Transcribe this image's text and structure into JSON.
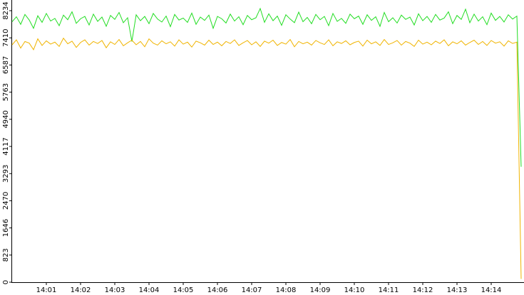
{
  "chart_data": {
    "type": "line",
    "categories": [
      null,
      null,
      null,
      null,
      null,
      null,
      null,
      null,
      "14:01",
      null,
      null,
      null,
      null,
      null,
      null,
      null,
      "14:02",
      null,
      null,
      null,
      null,
      null,
      null,
      null,
      "14:03",
      null,
      null,
      null,
      null,
      null,
      null,
      null,
      "14:04",
      null,
      null,
      null,
      null,
      null,
      null,
      null,
      "14:05",
      null,
      null,
      null,
      null,
      null,
      null,
      null,
      "14:06",
      null,
      null,
      null,
      null,
      null,
      null,
      null,
      "14:07",
      null,
      null,
      null,
      null,
      null,
      null,
      null,
      "14:08",
      null,
      null,
      null,
      null,
      null,
      null,
      null,
      "14:09",
      null,
      null,
      null,
      null,
      null,
      null,
      null,
      "14:10",
      null,
      null,
      null,
      null,
      null,
      null,
      null,
      "14:11",
      null,
      null,
      null,
      null,
      null,
      null,
      null,
      "14:12",
      null,
      null,
      null,
      null,
      null,
      null,
      null,
      "14:13",
      null,
      null,
      null,
      null,
      null,
      null,
      null,
      "14:14",
      null,
      null,
      null,
      null,
      null,
      null,
      null
    ],
    "series": [
      {
        "color": "#22dd22",
        "values": [
          7900,
          8050,
          7820,
          8120,
          7950,
          7700,
          8080,
          7880,
          8150,
          7920,
          8000,
          7780,
          8100,
          7960,
          8200,
          7850,
          7990,
          8060,
          7800,
          8130,
          7910,
          8040,
          7760,
          8090,
          7970,
          8180,
          7870,
          8020,
          7300,
          8110,
          7930,
          8060,
          7840,
          8150,
          7980,
          7890,
          8070,
          7750,
          8120,
          7950,
          8010,
          7880,
          8160,
          7820,
          8040,
          7940,
          8100,
          7700,
          8060,
          7990,
          7860,
          8130,
          7920,
          8050,
          7810,
          8090,
          7960,
          8020,
          8300,
          7880,
          8140,
          7930,
          8070,
          7790,
          8110,
          7980,
          7870,
          8190,
          7900,
          8030,
          7840,
          8120,
          7960,
          8060,
          7780,
          8150,
          7910,
          8000,
          7850,
          8130,
          7990,
          8070,
          7820,
          8110,
          7940,
          8050,
          7760,
          8180,
          7900,
          8020,
          7860,
          8100,
          7970,
          8040,
          7800,
          8140,
          7930,
          8060,
          7880,
          8120,
          7950,
          8010,
          8200,
          7840,
          8090,
          7970,
          8280,
          7870,
          8130,
          7920,
          8050,
          7810,
          8160,
          7940,
          8060,
          7890,
          8110,
          7980,
          8070,
          3500
        ]
      },
      {
        "color": "#f0b400",
        "values": [
          7200,
          7350,
          7100,
          7300,
          7250,
          7050,
          7380,
          7180,
          7320,
          7220,
          7280,
          7150,
          7400,
          7230,
          7310,
          7120,
          7270,
          7350,
          7190,
          7300,
          7240,
          7330,
          7110,
          7290,
          7210,
          7360,
          7170,
          7260,
          7340,
          7200,
          7300,
          7140,
          7380,
          7250,
          7190,
          7320,
          7230,
          7290,
          7160,
          7350,
          7220,
          7280,
          7130,
          7310,
          7260,
          7190,
          7340,
          7210,
          7280,
          7170,
          7300,
          7240,
          7350,
          7180,
          7260,
          7330,
          7200,
          7290,
          7150,
          7310,
          7250,
          7340,
          7180,
          7270,
          7220,
          7360,
          7140,
          7300,
          7230,
          7280,
          7190,
          7330,
          7260,
          7210,
          7350,
          7170,
          7290,
          7240,
          7320,
          7200,
          7270,
          7310,
          7160,
          7340,
          7230,
          7290,
          7180,
          7360,
          7210,
          7260,
          7330,
          7190,
          7300,
          7250,
          7150,
          7340,
          7220,
          7280,
          7200,
          7310,
          7240,
          7350,
          7170,
          7290,
          7230,
          7320,
          7190,
          7270,
          7340,
          7210,
          7300,
          7180,
          7330,
          7250,
          7290,
          7160,
          7320,
          7240,
          7280,
          100
        ]
      }
    ],
    "ylim": [
      0,
      8558
    ],
    "yticks": [
      0,
      823,
      1646,
      2470,
      3293,
      4117,
      4940,
      5763,
      6587,
      7410,
      8234
    ]
  }
}
